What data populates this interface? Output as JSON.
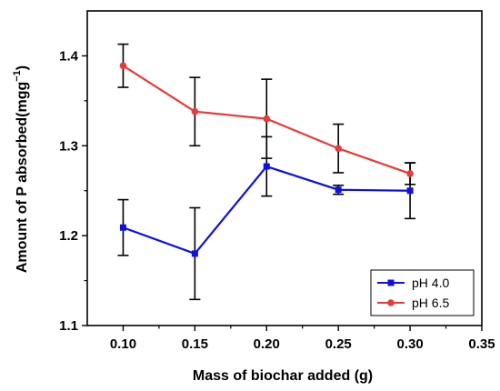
{
  "chart_data": {
    "type": "line",
    "title": "",
    "xlabel": "Mass of biochar added (g)",
    "ylabel_main": "Amount of P absorbed(mgg",
    "ylabel_sup": "−1",
    "ylabel_tail": ")",
    "xlim": [
      0.075,
      0.35
    ],
    "ylim": [
      1.1,
      1.45
    ],
    "xticks": [
      "0.10",
      "0.15",
      "0.20",
      "0.25",
      "0.30",
      "0.35"
    ],
    "yticks": [
      "1.1",
      "1.2",
      "1.3",
      "1.4"
    ],
    "legend_position": "bottom-right",
    "grid": false,
    "series": [
      {
        "name": "pH 4.0",
        "color": "#1010e0",
        "marker": "square",
        "x": [
          0.1,
          0.15,
          0.2,
          0.25,
          0.3
        ],
        "y": [
          1.209,
          1.18,
          1.277,
          1.251,
          1.25
        ],
        "err": [
          0.031,
          0.051,
          0.033,
          0.005,
          0.031
        ]
      },
      {
        "name": "pH 6.5",
        "color": "#e83a3a",
        "marker": "circle",
        "x": [
          0.1,
          0.15,
          0.2,
          0.25,
          0.3
        ],
        "y": [
          1.389,
          1.338,
          1.33,
          1.297,
          1.269
        ],
        "err": [
          0.024,
          0.038,
          0.044,
          0.027,
          0.012
        ]
      }
    ]
  }
}
